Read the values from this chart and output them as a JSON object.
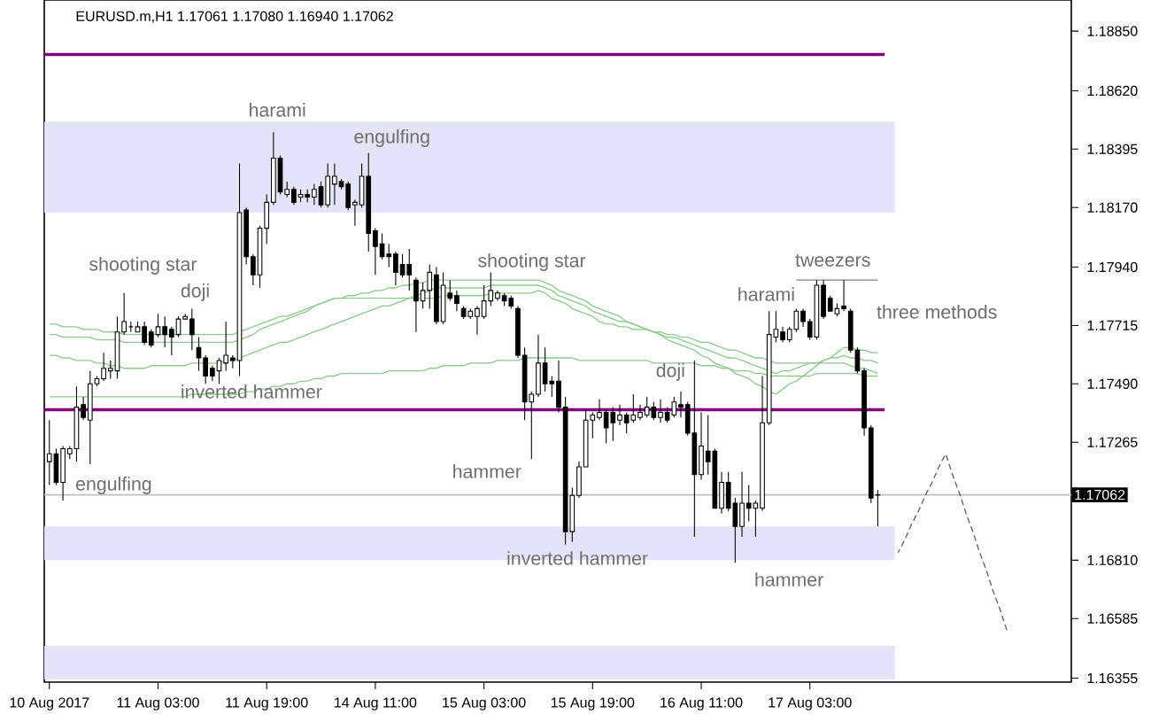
{
  "chart_data": {
    "type": "candlestick",
    "title": "EURUSD.m,H1 1.17061 1.17080 1.16940 1.17062",
    "categories": [
      "10 Aug 2017",
      null,
      null,
      null,
      null,
      null,
      null,
      null,
      null,
      null,
      null,
      null,
      null,
      null,
      null,
      null,
      "11 Aug 03:00",
      null,
      null,
      null,
      null,
      null,
      null,
      null,
      null,
      null,
      null,
      null,
      null,
      null,
      null,
      null,
      "11 Aug 19:00",
      null,
      null,
      null,
      null,
      null,
      null,
      null,
      null,
      null,
      null,
      null,
      null,
      null,
      null,
      null,
      "14 Aug 11:00",
      null,
      null,
      null,
      null,
      null,
      null,
      null,
      null,
      null,
      null,
      null,
      null,
      null,
      null,
      null,
      "15 Aug 03:00",
      null,
      null,
      null,
      null,
      null,
      null,
      null,
      null,
      null,
      null,
      null,
      null,
      null,
      null,
      null,
      "15 Aug 19:00",
      null,
      null,
      null,
      null,
      null,
      null,
      null,
      null,
      null,
      null,
      null,
      null,
      null,
      null,
      null,
      "16 Aug 11:00",
      null,
      null,
      null,
      null,
      null,
      null,
      null,
      null,
      null,
      null,
      null,
      null,
      null,
      null,
      null,
      "17 Aug 03:00",
      null,
      null,
      null,
      null,
      null,
      null,
      null,
      null,
      null,
      null,
      null,
      null,
      null,
      null,
      null,
      null,
      null,
      null,
      null,
      null,
      null,
      null,
      null,
      null,
      null,
      null,
      null,
      null,
      null,
      null,
      null,
      null,
      null,
      null,
      null,
      null,
      null,
      null
    ],
    "ohlc": [
      [
        1.1719,
        1.1735,
        1.171,
        1.1722
      ],
      [
        1.1722,
        1.1724,
        1.171,
        1.1711
      ],
      [
        1.1711,
        1.1725,
        1.1704,
        1.1724
      ],
      [
        1.1722,
        1.1725,
        1.172,
        1.1724
      ],
      [
        1.1724,
        1.1748,
        1.1719,
        1.174
      ],
      [
        1.1741,
        1.1744,
        1.1735,
        1.1736
      ],
      [
        1.1735,
        1.1754,
        1.1718,
        1.1749
      ],
      [
        1.1749,
        1.1752,
        1.1748,
        1.1751
      ],
      [
        1.1751,
        1.1761,
        1.175,
        1.1755
      ],
      [
        1.1754,
        1.1758,
        1.1751,
        1.1755
      ],
      [
        1.1754,
        1.1775,
        1.1751,
        1.1769
      ],
      [
        1.1769,
        1.1784,
        1.1768,
        1.1773
      ],
      [
        1.1771,
        1.1773,
        1.1769,
        1.1771
      ],
      [
        1.1769,
        1.1773,
        1.1769,
        1.1771
      ],
      [
        1.1771,
        1.1773,
        1.1764,
        1.1765
      ],
      [
        1.1769,
        1.177,
        1.1763,
        1.1764
      ],
      [
        1.1768,
        1.1776,
        1.1767,
        1.1771
      ],
      [
        1.1771,
        1.1775,
        1.1763,
        1.1768
      ],
      [
        1.177,
        1.1771,
        1.176,
        1.1767
      ],
      [
        1.1768,
        1.1775,
        1.1767,
        1.1774
      ],
      [
        1.1774,
        1.1776,
        1.1774,
        1.1775
      ],
      [
        1.1774,
        1.1778,
        1.1762,
        1.1768
      ],
      [
        1.1763,
        1.1767,
        1.1754,
        1.1759
      ],
      [
        1.1759,
        1.176,
        1.1749,
        1.1752
      ],
      [
        1.1755,
        1.1756,
        1.175,
        1.1752
      ],
      [
        1.1754,
        1.1759,
        1.1749,
        1.1758
      ],
      [
        1.1757,
        1.1773,
        1.1754,
        1.176
      ],
      [
        1.1759,
        1.176,
        1.1755,
        1.1758
      ],
      [
        1.1758,
        1.1834,
        1.1752,
        1.1815
      ],
      [
        1.1816,
        1.1817,
        1.1795,
        1.1798
      ],
      [
        1.1798,
        1.1799,
        1.1787,
        1.1791
      ],
      [
        1.1791,
        1.181,
        1.1786,
        1.1809
      ],
      [
        1.1809,
        1.1822,
        1.1803,
        1.1819
      ],
      [
        1.1819,
        1.1846,
        1.1818,
        1.1836
      ],
      [
        1.1836,
        1.1837,
        1.1822,
        1.1823
      ],
      [
        1.1822,
        1.1827,
        1.1821,
        1.1824
      ],
      [
        1.1824,
        1.1825,
        1.1818,
        1.1819
      ],
      [
        1.1821,
        1.1824,
        1.1819,
        1.1822
      ],
      [
        1.1822,
        1.1824,
        1.1819,
        1.1821
      ],
      [
        1.1821,
        1.1826,
        1.1818,
        1.1824
      ],
      [
        1.1825,
        1.1827,
        1.1817,
        1.1818
      ],
      [
        1.1818,
        1.1834,
        1.1817,
        1.1829
      ],
      [
        1.1826,
        1.1834,
        1.1818,
        1.1829
      ],
      [
        1.1827,
        1.1828,
        1.1824,
        1.1825
      ],
      [
        1.1826,
        1.1827,
        1.1816,
        1.1817
      ],
      [
        1.1818,
        1.182,
        1.181,
        1.1819
      ],
      [
        1.1818,
        1.1834,
        1.1817,
        1.1829
      ],
      [
        1.1829,
        1.1838,
        1.18,
        1.1807
      ],
      [
        1.1808,
        1.1809,
        1.1791,
        1.1802
      ],
      [
        1.1803,
        1.1807,
        1.1797,
        1.1798
      ],
      [
        1.1799,
        1.1803,
        1.1794,
        1.1798
      ],
      [
        1.1799,
        1.18,
        1.1787,
        1.1792
      ],
      [
        1.1795,
        1.1799,
        1.179,
        1.1791
      ],
      [
        1.1795,
        1.1801,
        1.1785,
        1.1791
      ],
      [
        1.1789,
        1.179,
        1.1769,
        1.1781
      ],
      [
        1.1781,
        1.1788,
        1.1778,
        1.1785
      ],
      [
        1.1785,
        1.1795,
        1.1778,
        1.1792
      ],
      [
        1.1791,
        1.1794,
        1.1772,
        1.1773
      ],
      [
        1.1773,
        1.1792,
        1.1772,
        1.1787
      ],
      [
        1.1784,
        1.1789,
        1.1781,
        1.1782
      ],
      [
        1.1783,
        1.1785,
        1.1777,
        1.178
      ],
      [
        1.1778,
        1.1779,
        1.1774,
        1.1775
      ],
      [
        1.1775,
        1.1778,
        1.1774,
        1.1777
      ],
      [
        1.1775,
        1.1779,
        1.1768,
        1.1778
      ],
      [
        1.1775,
        1.1787,
        1.1774,
        1.1781
      ],
      [
        1.1781,
        1.1792,
        1.1779,
        1.1785
      ],
      [
        1.1782,
        1.1785,
        1.1781,
        1.1784
      ],
      [
        1.1783,
        1.1784,
        1.1779,
        1.1781
      ],
      [
        1.1782,
        1.1783,
        1.1778,
        1.1779
      ],
      [
        1.1778,
        1.1779,
        1.1759,
        1.176
      ],
      [
        1.176,
        1.1763,
        1.1735,
        1.1742
      ],
      [
        1.1742,
        1.1746,
        1.172,
        1.1745
      ],
      [
        1.1745,
        1.1768,
        1.1744,
        1.1757
      ],
      [
        1.1757,
        1.1763,
        1.1746,
        1.1749
      ],
      [
        1.175,
        1.1752,
        1.1744,
        1.1749
      ],
      [
        1.175,
        1.1758,
        1.1738,
        1.174
      ],
      [
        1.174,
        1.1744,
        1.1687,
        1.1692
      ],
      [
        1.1692,
        1.1709,
        1.1688,
        1.1706
      ],
      [
        1.1706,
        1.1719,
        1.1705,
        1.1717
      ],
      [
        1.1717,
        1.1739,
        1.1717,
        1.1735
      ],
      [
        1.1735,
        1.1738,
        1.1728,
        1.1737
      ],
      [
        1.1736,
        1.1743,
        1.1735,
        1.1738
      ],
      [
        1.1738,
        1.1739,
        1.1726,
        1.1732
      ],
      [
        1.1738,
        1.174,
        1.1727,
        1.1734
      ],
      [
        1.1735,
        1.1741,
        1.1733,
        1.1737
      ],
      [
        1.1737,
        1.1738,
        1.173,
        1.1734
      ],
      [
        1.1735,
        1.1745,
        1.1734,
        1.1737
      ],
      [
        1.1736,
        1.1741,
        1.1735,
        1.1738
      ],
      [
        1.1737,
        1.1744,
        1.1736,
        1.174
      ],
      [
        1.174,
        1.1742,
        1.1735,
        1.1736
      ],
      [
        1.1736,
        1.1743,
        1.1734,
        1.1738
      ],
      [
        1.1738,
        1.174,
        1.1734,
        1.1735
      ],
      [
        1.1737,
        1.1744,
        1.1736,
        1.1742
      ],
      [
        1.1741,
        1.1746,
        1.1736,
        1.174
      ],
      [
        1.1741,
        1.1742,
        1.1729,
        1.173
      ],
      [
        1.173,
        1.1758,
        1.169,
        1.1714
      ],
      [
        1.1714,
        1.1738,
        1.1712,
        1.1725
      ],
      [
        1.1723,
        1.1737,
        1.1714,
        1.1719
      ],
      [
        1.1723,
        1.1724,
        1.1701,
        1.1701
      ],
      [
        1.1701,
        1.1715,
        1.1699,
        1.1711
      ],
      [
        1.1711,
        1.1715,
        1.17,
        1.1701
      ],
      [
        1.1703,
        1.1705,
        1.168,
        1.1694
      ],
      [
        1.1694,
        1.1715,
        1.169,
        1.1703
      ],
      [
        1.1703,
        1.171,
        1.1696,
        1.1701
      ],
      [
        1.1701,
        1.1704,
        1.169,
        1.1703
      ],
      [
        1.1701,
        1.1752,
        1.17,
        1.1734
      ],
      [
        1.1734,
        1.1777,
        1.1733,
        1.1768
      ],
      [
        1.1767,
        1.1777,
        1.1765,
        1.177
      ],
      [
        1.1769,
        1.1771,
        1.1765,
        1.1766
      ],
      [
        1.1766,
        1.1771,
        1.1765,
        1.177
      ],
      [
        1.177,
        1.1778,
        1.1769,
        1.1777
      ],
      [
        1.1777,
        1.1778,
        1.1771,
        1.1773
      ],
      [
        1.1773,
        1.1774,
        1.1766,
        1.1767
      ],
      [
        1.1767,
        1.1789,
        1.1766,
        1.1787
      ],
      [
        1.1787,
        1.1789,
        1.1774,
        1.1775
      ],
      [
        1.1782,
        1.1783,
        1.1777,
        1.1777
      ],
      [
        1.1776,
        1.178,
        1.1775,
        1.1778
      ],
      [
        1.1779,
        1.1789,
        1.1777,
        1.1778
      ],
      [
        1.1777,
        1.1778,
        1.1761,
        1.1762
      ],
      [
        1.1762,
        1.1763,
        1.1753,
        1.1754
      ],
      [
        1.1754,
        1.1755,
        1.1729,
        1.1732
      ],
      [
        1.1732,
        1.1733,
        1.1703,
        1.1705
      ],
      [
        1.17061,
        1.1708,
        1.1694,
        1.17062
      ],
      null,
      null,
      null,
      null,
      null,
      null,
      null,
      null,
      null,
      null,
      null,
      null,
      null,
      null,
      null,
      null,
      null,
      null,
      null,
      null,
      null,
      null,
      null,
      null,
      null,
      null,
      null,
      null
    ],
    "series": [
      {
        "type": "line",
        "color": "#8fc98f",
        "values": [
          1.1772,
          1.1772,
          1.1771,
          1.1771,
          1.1771,
          1.177,
          1.177,
          1.177,
          1.1769,
          1.1769,
          1.1769,
          1.1768,
          1.1768,
          1.1768,
          1.1768,
          1.1768,
          1.1768,
          1.1768,
          1.1768,
          1.1768,
          1.1768,
          1.1768,
          1.1768,
          1.1768,
          1.1768,
          1.1768,
          1.1768,
          1.1768,
          1.1769,
          1.177,
          1.1771,
          1.1772,
          1.1773,
          1.1774,
          1.1775,
          1.1775,
          1.1776,
          1.1777,
          1.1778,
          1.1779,
          1.178,
          1.1781,
          1.1782,
          1.1782,
          1.1783,
          1.1783,
          1.1784,
          1.1784,
          1.1785,
          1.1785,
          1.1786,
          1.1786,
          1.1787,
          1.1787,
          1.1788,
          1.1788,
          1.1789,
          1.1789,
          1.1789,
          1.1789,
          1.1789,
          1.1789,
          1.1789,
          1.1789,
          1.1789,
          1.1789,
          1.1789,
          1.1789,
          1.1789,
          1.1789,
          1.1789,
          1.1789,
          1.1789,
          1.1788,
          1.1787,
          1.1785,
          1.1784,
          1.1783,
          1.1782,
          1.1781,
          1.1779,
          1.1778,
          1.1777,
          1.1776,
          1.1775,
          1.1773,
          1.1772,
          1.1771,
          1.177,
          1.1769,
          1.1768,
          1.1766,
          1.1765,
          1.1764,
          1.1763,
          1.1762,
          1.176,
          1.1759,
          1.1757,
          1.1756,
          1.1755,
          1.1753,
          1.1752,
          1.1751,
          1.1749,
          1.1748,
          1.1746,
          1.1745,
          1.1747,
          1.1749,
          1.175,
          1.1752,
          1.1754,
          1.1756,
          1.1758,
          1.1759,
          1.1761,
          1.1763,
          1.1763,
          1.1762,
          1.1762,
          1.1761,
          1.1761,
          null,
          null,
          null,
          null,
          null,
          null,
          null,
          null,
          null,
          null,
          null,
          null,
          null,
          null,
          null,
          null,
          null,
          null,
          null,
          null,
          null,
          null,
          null,
          null,
          null,
          null,
          null,
          null
        ]
      },
      {
        "type": "line",
        "color": "#8fc98f",
        "values": [
          1.176,
          1.176,
          1.1759,
          1.1759,
          1.1758,
          1.1758,
          1.1758,
          1.1757,
          1.1757,
          1.1756,
          1.1756,
          1.1755,
          1.1755,
          1.1755,
          1.1755,
          1.1756,
          1.1756,
          1.1756,
          1.1756,
          1.1756,
          1.1756,
          1.1757,
          1.1757,
          1.1757,
          1.1757,
          1.1757,
          1.1758,
          1.1758,
          1.1759,
          1.176,
          1.1761,
          1.1762,
          1.1763,
          1.1764,
          1.1765,
          1.1765,
          1.1766,
          1.1767,
          1.1768,
          1.1769,
          1.177,
          1.1771,
          1.1772,
          1.1773,
          1.1774,
          1.1775,
          1.1776,
          1.1777,
          1.1778,
          1.1779,
          1.1779,
          1.178,
          1.1781,
          1.1782,
          1.1783,
          1.1784,
          1.1785,
          1.1786,
          1.1786,
          1.1786,
          1.1786,
          1.1786,
          1.1786,
          1.1786,
          1.1786,
          1.1787,
          1.1787,
          1.1787,
          1.1787,
          1.1787,
          1.1787,
          1.1787,
          1.1787,
          1.1786,
          1.1785,
          1.1783,
          1.1782,
          1.1781,
          1.178,
          1.1779,
          1.1777,
          1.1776,
          1.1775,
          1.1774,
          1.1773,
          1.1773,
          1.1772,
          1.1771,
          1.177,
          1.1769,
          1.1768,
          1.1767,
          1.1767,
          1.1766,
          1.1765,
          1.1764,
          1.1763,
          1.1762,
          1.1761,
          1.176,
          1.1759,
          1.1759,
          1.1758,
          1.1757,
          1.1756,
          1.1755,
          1.1754,
          1.1753,
          1.1754,
          1.1754,
          1.1755,
          1.1756,
          1.1757,
          1.1757,
          1.1758,
          1.1759,
          1.1759,
          1.176,
          1.1759,
          1.1759,
          1.1758,
          1.1758,
          1.1757,
          null,
          null,
          null,
          null,
          null,
          null,
          null,
          null,
          null,
          null,
          null,
          null,
          null,
          null,
          null,
          null,
          null,
          null,
          null,
          null,
          null,
          null,
          null,
          null,
          null,
          null,
          null,
          null
        ]
      },
      {
        "type": "line",
        "color": "#8fc98f",
        "values": [
          1.1768,
          1.1768,
          1.1767,
          1.1767,
          1.1767,
          1.1767,
          1.1767,
          1.1766,
          1.1766,
          1.1766,
          1.1766,
          1.1765,
          1.1765,
          1.1765,
          1.1765,
          1.1765,
          1.1765,
          1.1765,
          1.1765,
          1.1765,
          1.1765,
          1.1765,
          1.1765,
          1.1765,
          1.1765,
          1.1765,
          1.1765,
          1.1765,
          1.1766,
          1.1767,
          1.1768,
          1.177,
          1.1771,
          1.1772,
          1.1773,
          1.1774,
          1.1775,
          1.1776,
          1.1777,
          1.1779,
          1.178,
          1.1781,
          1.1782,
          1.1782,
          1.1782,
          1.1782,
          1.1782,
          1.1782,
          1.1782,
          1.1782,
          1.1782,
          1.1782,
          1.1782,
          1.1782,
          1.1782,
          1.1782,
          1.1782,
          1.1782,
          1.1783,
          1.1783,
          1.1783,
          1.1783,
          1.1783,
          1.1783,
          1.1783,
          1.1784,
          1.1784,
          1.1784,
          1.1784,
          1.1784,
          1.1784,
          1.1784,
          1.1785,
          1.1784,
          1.1782,
          1.1781,
          1.178,
          1.1778,
          1.1777,
          1.1776,
          1.1775,
          1.1773,
          1.1772,
          1.1772,
          1.1771,
          1.1771,
          1.177,
          1.177,
          1.177,
          1.1769,
          1.1769,
          1.1768,
          1.1768,
          1.1767,
          1.1767,
          1.1766,
          1.1765,
          1.1765,
          1.1764,
          1.1763,
          1.1762,
          1.1762,
          1.1761,
          1.176,
          1.1759,
          1.1759,
          1.1758,
          1.1757,
          1.1757,
          1.1757,
          1.1757,
          1.1757,
          1.1757,
          1.1757,
          1.1757,
          1.1757,
          1.1757,
          1.1757,
          1.1756,
          1.1755,
          1.1755,
          1.1754,
          1.1753,
          null,
          null,
          null,
          null,
          null,
          null,
          null,
          null,
          null,
          null,
          null,
          null,
          null,
          null,
          null,
          null,
          null,
          null,
          null,
          null,
          null,
          null,
          null,
          null,
          null,
          null,
          null,
          null
        ]
      },
      {
        "type": "line",
        "color": "#8fc98f",
        "values": [
          1.1744,
          1.1744,
          1.1744,
          1.1744,
          1.1744,
          1.1744,
          1.1744,
          1.1744,
          1.1744,
          1.1744,
          1.1744,
          1.1744,
          1.1744,
          1.1744,
          1.1744,
          1.1744,
          1.1744,
          1.1744,
          1.1744,
          1.1744,
          1.1744,
          1.1745,
          1.1745,
          1.1745,
          1.1745,
          1.1745,
          1.1745,
          1.1745,
          1.1745,
          1.1746,
          1.1746,
          1.1747,
          1.1747,
          1.1748,
          1.1748,
          1.1749,
          1.1749,
          1.175,
          1.175,
          1.1751,
          1.1751,
          1.1752,
          1.1752,
          1.1753,
          1.1753,
          1.1753,
          1.1753,
          1.1753,
          1.1753,
          1.1753,
          1.1754,
          1.1754,
          1.1754,
          1.1754,
          1.1754,
          1.1754,
          1.1755,
          1.1755,
          1.1756,
          1.1756,
          1.1756,
          1.1756,
          1.1757,
          1.1757,
          1.1757,
          1.1757,
          1.1758,
          1.1758,
          1.1758,
          1.1758,
          1.1759,
          1.1759,
          1.1759,
          1.1759,
          1.1759,
          1.1759,
          1.1759,
          1.1759,
          1.1758,
          1.1758,
          1.1758,
          1.1758,
          1.1758,
          1.1758,
          1.1758,
          1.1758,
          1.1758,
          1.1758,
          1.1758,
          1.1757,
          1.1757,
          1.1757,
          1.1757,
          1.1757,
          1.1757,
          1.1757,
          1.1756,
          1.1756,
          1.1756,
          1.1755,
          1.1755,
          1.1754,
          1.1754,
          1.1754,
          1.1753,
          1.1753,
          1.1752,
          1.1752,
          1.1752,
          1.1752,
          1.1752,
          1.1752,
          1.1752,
          1.1753,
          1.1753,
          1.1753,
          1.1753,
          1.1753,
          1.1753,
          1.1753,
          1.1752,
          1.1752,
          1.1752,
          null,
          null,
          null,
          null,
          null,
          null,
          null,
          null,
          null,
          null,
          null,
          null,
          null,
          null,
          null,
          null,
          null,
          null,
          null,
          null,
          null,
          null,
          null,
          null,
          null,
          null,
          null,
          null
        ]
      },
      {
        "type": "line",
        "color": "#808080",
        "values": [
          null,
          null,
          null,
          null,
          null,
          null,
          null,
          null,
          null,
          null,
          null,
          null,
          null,
          null,
          null,
          null,
          null,
          null,
          null,
          null,
          null,
          null,
          null,
          null,
          null,
          null,
          null,
          null,
          null,
          null,
          null,
          null,
          null,
          null,
          null,
          null,
          null,
          null,
          null,
          null,
          null,
          null,
          null,
          null,
          null,
          null,
          null,
          null,
          null,
          null,
          null,
          null,
          null,
          null,
          null,
          null,
          null,
          null,
          null,
          null,
          null,
          null,
          null,
          null,
          null,
          null,
          null,
          null,
          null,
          null,
          null,
          null,
          null,
          null,
          null,
          null,
          null,
          null,
          null,
          null,
          null,
          null,
          null,
          null,
          null,
          null,
          null,
          null,
          null,
          null,
          null,
          null,
          null,
          null,
          null,
          null,
          null,
          null,
          null,
          null,
          null,
          null,
          null,
          null,
          null,
          null,
          null,
          null,
          null,
          null,
          1.1789,
          1.1789,
          1.1789,
          1.1789,
          1.1789,
          1.1789,
          1.1789,
          1.1789,
          1.1789,
          1.1789,
          1.1789,
          1.1789,
          1.1789,
          null,
          null,
          null,
          null,
          null,
          null,
          null,
          null,
          null,
          null,
          null,
          null,
          null,
          null,
          null,
          null,
          null,
          null,
          null,
          null,
          null,
          null,
          null,
          null,
          null,
          null,
          null,
          null
        ]
      },
      {
        "type": "line",
        "color": "#606060",
        "line_style": "dashed",
        "values": [
          null,
          null,
          null,
          null,
          null,
          null,
          null,
          null,
          null,
          null,
          null,
          null,
          null,
          null,
          null,
          null,
          null,
          null,
          null,
          null,
          null,
          null,
          null,
          null,
          null,
          null,
          null,
          null,
          null,
          null,
          null,
          null,
          null,
          null,
          null,
          null,
          null,
          null,
          null,
          null,
          null,
          null,
          null,
          null,
          null,
          null,
          null,
          null,
          null,
          null,
          null,
          null,
          null,
          null,
          null,
          null,
          null,
          null,
          null,
          null,
          null,
          null,
          null,
          null,
          null,
          null,
          null,
          null,
          null,
          null,
          null,
          null,
          null,
          null,
          null,
          null,
          null,
          null,
          null,
          null,
          null,
          null,
          null,
          null,
          null,
          null,
          null,
          null,
          null,
          null,
          null,
          null,
          null,
          null,
          null,
          null,
          null,
          null,
          null,
          null,
          null,
          null,
          null,
          null,
          null,
          null,
          null,
          null,
          null,
          null,
          null,
          null,
          null,
          null,
          null,
          null,
          null,
          null,
          null,
          null,
          null,
          null,
          null,
          null,
          null,
          1.1684,
          1.1689,
          1.1695,
          1.17,
          1.1706,
          1.1711,
          1.1717,
          1.1722,
          1.1714,
          1.1707,
          1.1699,
          1.1692,
          1.1684,
          1.1677,
          1.1669,
          1.1662,
          1.1654,
          null,
          null,
          null,
          null,
          null,
          null,
          null,
          null,
          null
        ]
      }
    ],
    "ylim": [
      1.1634,
      1.1897
    ],
    "yticks": [
      {
        "value": 1.1885,
        "label": "1.18850"
      },
      {
        "value": 1.1862,
        "label": "1.18620"
      },
      {
        "value": 1.18395,
        "label": "1.18395"
      },
      {
        "value": 1.1817,
        "label": "1.18170"
      },
      {
        "value": 1.1794,
        "label": "1.17940"
      },
      {
        "value": 1.17715,
        "label": "1.17715"
      },
      {
        "value": 1.1749,
        "label": "1.17490"
      },
      {
        "value": 1.17265,
        "label": "1.17265"
      },
      {
        "value": 1.1681,
        "label": "1.16810"
      },
      {
        "value": 1.16585,
        "label": "1.16585"
      },
      {
        "value": 1.16355,
        "label": "1.16355"
      }
    ],
    "ref_lines": [
      {
        "axis": "y",
        "value": 1.1876,
        "color": "#800080"
      },
      {
        "axis": "y",
        "value": 1.1739,
        "color": "#800080"
      },
      {
        "axis": "y",
        "value": 1.17062,
        "label": "1.17062",
        "color": "#c0c0c0"
      }
    ],
    "bands": [
      {
        "axis": "y",
        "from": 1.1815,
        "to": 1.185,
        "color": "#e4e4f8"
      },
      {
        "axis": "y",
        "from": 1.1681,
        "to": 1.1694,
        "color": "#e4e4f8"
      },
      {
        "axis": "y",
        "from": 1.1635,
        "to": 1.1648,
        "color": "#e4e4f8"
      }
    ],
    "annotations": [
      "harami",
      "engulfing",
      "shooting star",
      "doji",
      "inverted hammer",
      "engulfing",
      "shooting star",
      "hammer",
      "inverted hammer",
      "doji",
      "harami",
      "tweezers",
      "three methods",
      "hammer"
    ]
  }
}
